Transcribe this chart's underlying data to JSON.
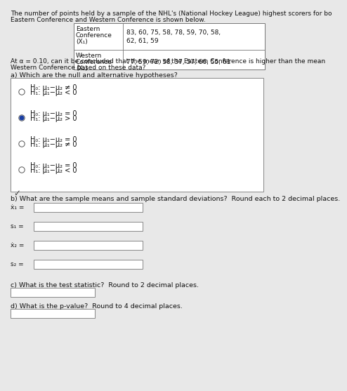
{
  "title_line1": "The number of points held by a sample of the NHL's (National Hockey League) highest scorers for bo",
  "title_line2": "Eastern Conference and Western Conference is shown below.",
  "row1_label1": "Eastern",
  "row1_label2": "Conference",
  "row1_label3": "(X₁)",
  "row1_data1": "83, 60, 75, 58, 78, 59, 70, 58,",
  "row1_data2": "62, 61, 59",
  "row2_label1": "Western",
  "row2_label2": "Conference",
  "row2_label3": "(X₂)",
  "row2_data": "77, 59, 72, 58, 37, 57, 66, 55, 61",
  "alpha_text1": "At α = 0.10, can it be concluded that the mean of the Eastern Conference is higher than the mean",
  "alpha_text2": "Western Conference based on these data?",
  "part_a": "a) Which are the null and alternative hypotheses?",
  "hyp": [
    {
      "h0": "H₀: μ₁−μ₂ ≠ 0",
      "h1": "H₁: μ₁−μ₂ < 0",
      "selected": false
    },
    {
      "h0": "H₀: μ₁−μ₂ = 0",
      "h1": "H₁: μ₁−μ₂ > 0",
      "selected": true
    },
    {
      "h0": "H₀: μ₁−μ₂ = 0",
      "h1": "H₁: μ₁−μ₂ ≠ 0",
      "selected": false
    },
    {
      "h0": "H₀: μ₁−μ₂ = 0",
      "h1": "H₁: μ₁−μ₂ < 0",
      "selected": false
    }
  ],
  "part_b": "b) What are the sample means and sample standard deviations?  Round each to 2 decimal places.",
  "lbl_x1": "ẋ₁ =",
  "lbl_s1": "s₁ =",
  "lbl_x2": "ẋ₂ =",
  "lbl_s2": "s₂ =",
  "part_c": "c) What is the test statistic?  Round to 2 decimal places.",
  "part_d": "d) What is the p-value?  Round to 4 decimal places.",
  "bg": "#e8e8e8",
  "white": "#ffffff",
  "dot_fill": "#1a3fa3",
  "dot_border": "#555555",
  "text_color": "#111111",
  "border_color": "#777777",
  "fs_title": 6.5,
  "fs_body": 6.8,
  "fs_hyp": 7.0,
  "fs_label": 6.5
}
